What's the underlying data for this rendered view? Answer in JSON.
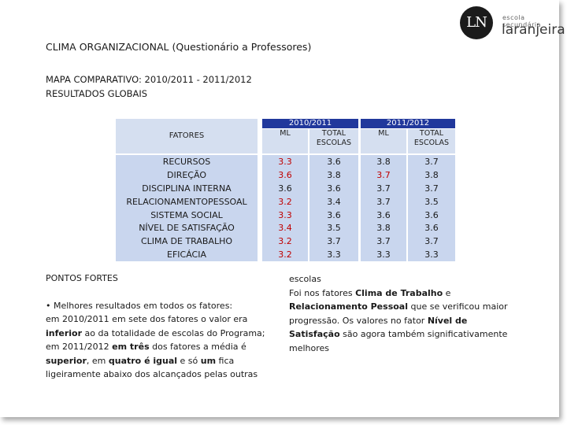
{
  "title": "CLIMA ORGANIZACIONAL (Questionário a Professores)",
  "subtitle1": "MAPA COMPARATIVO: 2010/2011   -   2011/2012",
  "subtitle2": "RESULTADOS GLOBAIS",
  "logo": {
    "mark": "LN",
    "top_text": "escola secundária",
    "main_text": "laranjeira"
  },
  "table": {
    "factors_header": "FATORES",
    "factors": [
      "RECURSOS",
      "DIREÇÃO",
      "DISCIPLINA INTERNA",
      "RELACIONAMENTOPESSOAL",
      "SISTEMA SOCIAL",
      "NÍVEL DE SATISFAÇÃO",
      "CLIMA DE TRABALHO",
      "EFICÁCIA"
    ],
    "group1": {
      "year": "2010/2011",
      "ml": "ML",
      "total1": "TOTAL",
      "total2": "ESCOLAS",
      "ml_values": [
        "3.3",
        "3.6",
        "3.6",
        "3.2",
        "3.3",
        "3.4",
        "3.2",
        "3.2"
      ],
      "ml_red": [
        true,
        true,
        false,
        true,
        true,
        true,
        true,
        true
      ],
      "total_values": [
        "3.6",
        "3.8",
        "3.6",
        "3.4",
        "3.6",
        "3.5",
        "3.7",
        "3.3"
      ]
    },
    "group2": {
      "year": "2011/2012",
      "ml": "ML",
      "total1": "TOTAL",
      "total2": "ESCOLAS",
      "ml_values": [
        "3.8",
        "3.7",
        "3.7",
        "3.7",
        "3.6",
        "3.8",
        "3.7",
        "3.3"
      ],
      "ml_red": [
        false,
        true,
        false,
        false,
        false,
        false,
        false,
        false
      ],
      "total_values": [
        "3.7",
        "3.8",
        "3.7",
        "3.5",
        "3.6",
        "3.6",
        "3.7",
        "3.3"
      ]
    },
    "colors": {
      "header_blue": "#21389c",
      "light_blue": "#c9d6ee",
      "red": "#c00000"
    }
  },
  "pontos_fortes": "PONTOS FORTES",
  "left_text": {
    "l1": "• Melhores resultados em todos os fatores:",
    "l2": "em 2010/2011 em sete dos fatores o valor era",
    "l3a": "inferior",
    "l3b": " ao da totalidade de escolas do Programa;",
    "l4a": "em 2011/2012 ",
    "l4b": "em três",
    "l4c": " dos fatores a média é",
    "l5a": "superior",
    "l5b": ", em ",
    "l5c": "quatro é igual",
    "l5d": " e só ",
    "l5e": "um",
    "l5f": " fica",
    "l6": "ligeiramente abaixo dos alcançados pelas outras"
  },
  "right_text": {
    "r1": "escolas",
    "r2a": "Foi nos fatores ",
    "r2b": "Clima de Trabalho",
    "r2c": " e",
    "r3a": "Relacionamento Pessoal",
    "r3b": " que se verificou maior",
    "r4a": "progressão. Os valores no fator ",
    "r4b": "Nível de",
    "r5a": "Satisfação",
    "r5b": " são agora também significativamente",
    "r6": "melhores"
  }
}
